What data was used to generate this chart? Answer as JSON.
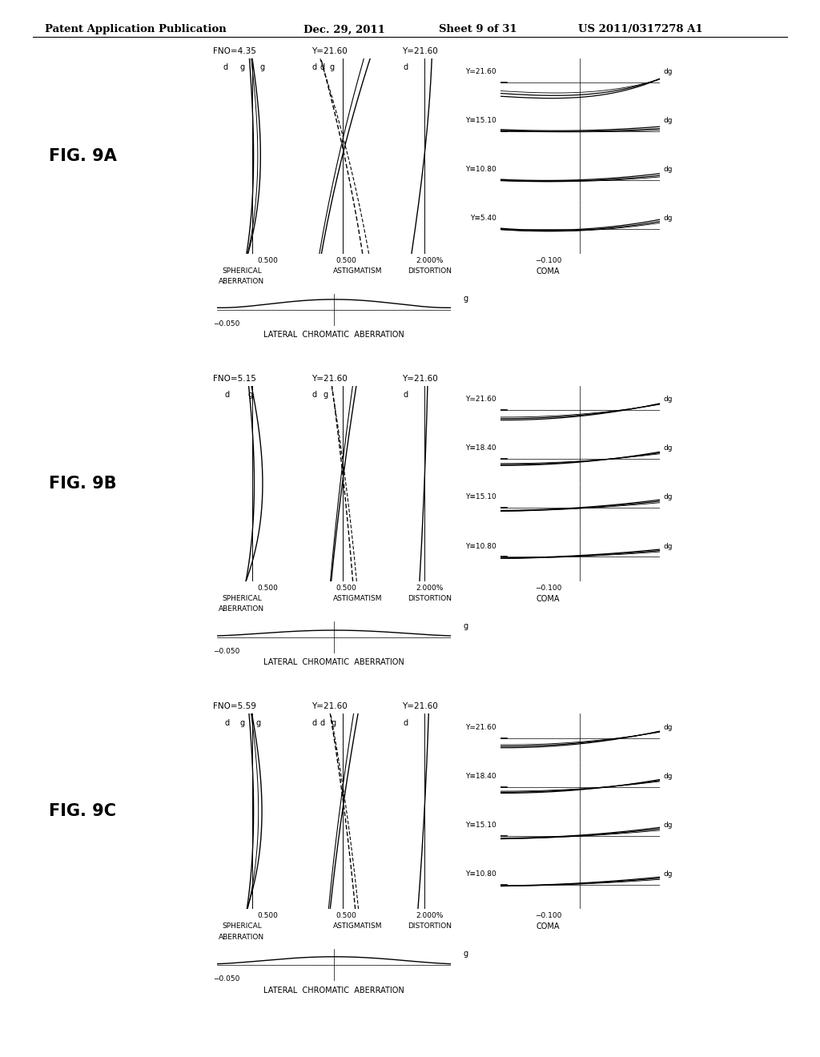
{
  "title_header": "Patent Application Publication",
  "title_date": "Dec. 29, 2011",
  "title_sheet": "Sheet 9 of 31",
  "title_patent": "US 2011/0317278 A1",
  "background_color": "#ffffff",
  "figures": [
    {
      "label": "FIG. 9A",
      "fno": "FNO=4.35",
      "coma_rows": [
        "Y=21.60",
        "Y≡15.10",
        "Y≡10.80",
        "Y≡5.40"
      ],
      "sa_labels": [
        "d",
        "g",
        "g"
      ],
      "ast_labels": [
        "d",
        "d",
        "g"
      ],
      "dist_label": "d"
    },
    {
      "label": "FIG. 9B",
      "fno": "FNO=5.15",
      "coma_rows": [
        "Y=21.60",
        "Y≡18.40",
        "Y≡15.10",
        "Y≡10.80"
      ],
      "sa_labels": [
        "d",
        "g"
      ],
      "ast_labels": [
        "d",
        "g"
      ],
      "dist_label": "d"
    },
    {
      "label": "FIG. 9C",
      "fno": "FNO=5.59",
      "coma_rows": [
        "Y=21.60",
        "Y≡18.40",
        "Y≡15.10",
        "Y≡10.80"
      ],
      "sa_labels": [
        "d",
        "g",
        "g"
      ],
      "ast_labels": [
        "d",
        "d",
        "g"
      ],
      "dist_label": "d"
    }
  ]
}
